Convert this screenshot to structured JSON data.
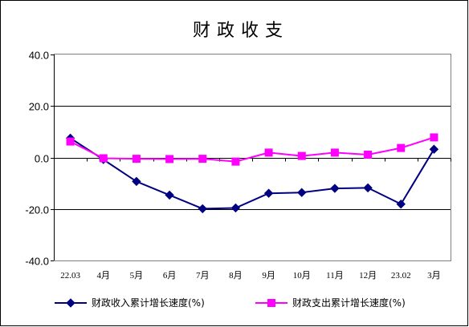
{
  "chart_data": {
    "type": "line",
    "title": "财政收支",
    "categories": [
      "22.03",
      "4月",
      "5月",
      "6月",
      "7月",
      "8月",
      "9月",
      "10月",
      "11月",
      "12月",
      "23.02",
      "3月"
    ],
    "series": [
      {
        "name": "财政收入累计增长速度(%)",
        "color": "#000080",
        "marker": "diamond",
        "values": [
          7.5,
          -0.8,
          -9.3,
          -14.6,
          -19.9,
          -19.6,
          -13.9,
          -13.6,
          -12.0,
          -11.8,
          -18.1,
          3.2
        ]
      },
      {
        "name": "财政支出累计增长速度(%)",
        "color": "#ff00ff",
        "marker": "square",
        "values": [
          6.2,
          -0.3,
          -0.5,
          -0.6,
          -0.5,
          -1.6,
          1.9,
          0.6,
          1.9,
          1.1,
          3.7,
          7.8
        ]
      }
    ],
    "ylim": [
      -40,
      40
    ],
    "yticks": [
      "40.0",
      "20.0",
      "0.0",
      "-20.0",
      "-40.0"
    ],
    "ytick_values": [
      40,
      20,
      0,
      -20,
      -40
    ],
    "grid": true,
    "legend": "bottom",
    "xlabel": "",
    "ylabel": ""
  }
}
